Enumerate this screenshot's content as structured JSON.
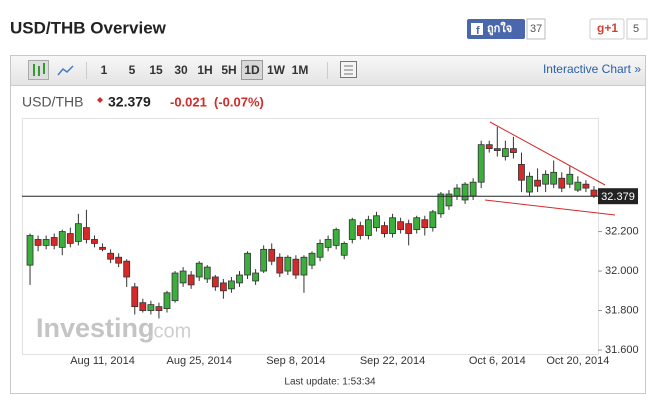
{
  "header": {
    "title": "USD/THB Overview",
    "like": "ถูกใจ",
    "like_count": 37,
    "gplus": "g+1",
    "gplus_count": 5
  },
  "toolbar": {
    "intervals": [
      "1",
      "5",
      "15",
      "30",
      "1H",
      "5H",
      "1D",
      "1W",
      "1M"
    ],
    "link": "Interactive Chart »"
  },
  "quote": {
    "symbol": "USD/THB",
    "price": 32.379,
    "change": -0.021,
    "change_pct": {
      "value": -0.07,
      "label": "(-0.07%)"
    }
  },
  "chart_data": {
    "type": "candlestick",
    "categories": [
      null,
      null,
      null,
      null,
      null,
      null,
      null,
      null,
      null,
      "Aug 11, 2014",
      null,
      null,
      null,
      null,
      null,
      null,
      null,
      null,
      null,
      null,
      null,
      "Aug 25, 2014",
      null,
      null,
      null,
      null,
      null,
      null,
      null,
      null,
      null,
      null,
      null,
      "Sep 8, 2014",
      null,
      null,
      null,
      null,
      null,
      null,
      null,
      null,
      null,
      null,
      null,
      "Sep 22, 2014",
      null,
      null,
      null,
      null,
      null,
      null,
      null,
      null,
      null,
      null,
      null,
      null,
      "Oct 6, 2014",
      null,
      null,
      null,
      null,
      null,
      null,
      null,
      null,
      null,
      "Oct 20, 2014",
      null,
      null
    ],
    "open": [
      32.03,
      32.16,
      32.13,
      32.17,
      32.12,
      32.19,
      32.15,
      32.22,
      32.16,
      32.12,
      32.09,
      32.07,
      32.05,
      31.92,
      31.84,
      31.8,
      31.82,
      31.81,
      31.85,
      31.94,
      31.98,
      31.97,
      31.96,
      31.97,
      31.94,
      31.91,
      31.94,
      31.98,
      31.95,
      32.0,
      32.11,
      32.07,
      32.0,
      32.06,
      31.98,
      32.03,
      32.07,
      32.12,
      32.13,
      32.08,
      32.16,
      32.23,
      32.18,
      32.22,
      32.23,
      32.19,
      32.25,
      32.24,
      32.21,
      32.26,
      32.22,
      32.29,
      32.33,
      32.38,
      32.36,
      32.38,
      32.45,
      32.64,
      32.62,
      32.58,
      32.62,
      32.54,
      32.4,
      32.46,
      32.44,
      32.44,
      32.47,
      32.44,
      32.41,
      32.44,
      32.41
    ],
    "high": [
      32.19,
      32.18,
      32.18,
      32.19,
      32.21,
      32.22,
      32.29,
      32.31,
      32.18,
      32.14,
      32.11,
      32.09,
      32.06,
      31.94,
      31.86,
      31.85,
      31.84,
      31.9,
      32.0,
      32.02,
      32.0,
      32.05,
      32.03,
      31.98,
      31.96,
      31.97,
      32.0,
      32.1,
      32.01,
      32.13,
      32.14,
      32.09,
      32.08,
      32.08,
      32.08,
      32.1,
      32.16,
      32.18,
      32.22,
      32.15,
      32.27,
      32.25,
      32.28,
      32.3,
      32.25,
      32.29,
      32.27,
      32.26,
      32.28,
      32.28,
      32.31,
      32.4,
      32.41,
      32.44,
      32.45,
      32.47,
      32.66,
      32.66,
      32.73,
      32.66,
      32.68,
      32.6,
      32.5,
      32.52,
      32.51,
      32.56,
      32.5,
      32.53,
      32.48,
      32.46,
      32.43
    ],
    "low": [
      31.93,
      32.1,
      32.11,
      32.11,
      32.08,
      32.12,
      32.13,
      32.14,
      32.12,
      32.1,
      32.04,
      32.02,
      31.92,
      31.78,
      31.79,
      31.78,
      31.76,
      31.79,
      31.84,
      31.92,
      31.91,
      31.95,
      31.94,
      31.9,
      31.86,
      31.89,
      31.92,
      31.96,
      31.93,
      31.99,
      32.03,
      31.97,
      31.98,
      31.96,
      31.89,
      32.01,
      32.05,
      32.1,
      32.11,
      32.06,
      32.14,
      32.16,
      32.16,
      32.2,
      32.17,
      32.17,
      32.19,
      32.13,
      32.19,
      32.18,
      32.2,
      32.27,
      32.31,
      32.36,
      32.34,
      32.36,
      32.42,
      32.6,
      32.58,
      32.56,
      32.57,
      32.4,
      32.38,
      32.4,
      32.4,
      32.42,
      32.4,
      32.42,
      32.4,
      32.4,
      32.37
    ],
    "close": [
      32.18,
      32.13,
      32.16,
      32.13,
      32.2,
      32.14,
      32.24,
      32.16,
      32.14,
      32.11,
      32.06,
      32.04,
      31.97,
      31.82,
      31.8,
      31.83,
      31.8,
      31.89,
      31.99,
      32.0,
      31.93,
      32.04,
      32.02,
      31.92,
      31.9,
      31.95,
      31.98,
      32.09,
      31.99,
      32.11,
      32.05,
      31.99,
      32.07,
      31.98,
      32.07,
      32.09,
      32.14,
      32.16,
      32.21,
      32.14,
      32.26,
      32.18,
      32.26,
      32.28,
      32.19,
      32.27,
      32.21,
      32.19,
      32.27,
      32.22,
      32.3,
      32.39,
      32.39,
      32.42,
      32.44,
      32.45,
      32.64,
      32.62,
      32.61,
      32.62,
      32.6,
      32.46,
      32.48,
      32.43,
      32.49,
      32.5,
      32.42,
      32.49,
      32.45,
      32.42,
      32.38
    ],
    "up_color": "#3cae3c",
    "down_color": "#d42a2a",
    "last_price": 32.379,
    "ylim": [
      31.575,
      32.775
    ],
    "yticks": [
      {
        "value": 31.6,
        "label": "31.600"
      },
      {
        "value": 31.8,
        "label": "31.800"
      },
      {
        "value": 32.0,
        "label": "32.000"
      },
      {
        "value": 32.2,
        "label": "32.200"
      }
    ],
    "watermark": [
      "Investing",
      ".com"
    ],
    "footer": "Last update: 1:53:34"
  }
}
